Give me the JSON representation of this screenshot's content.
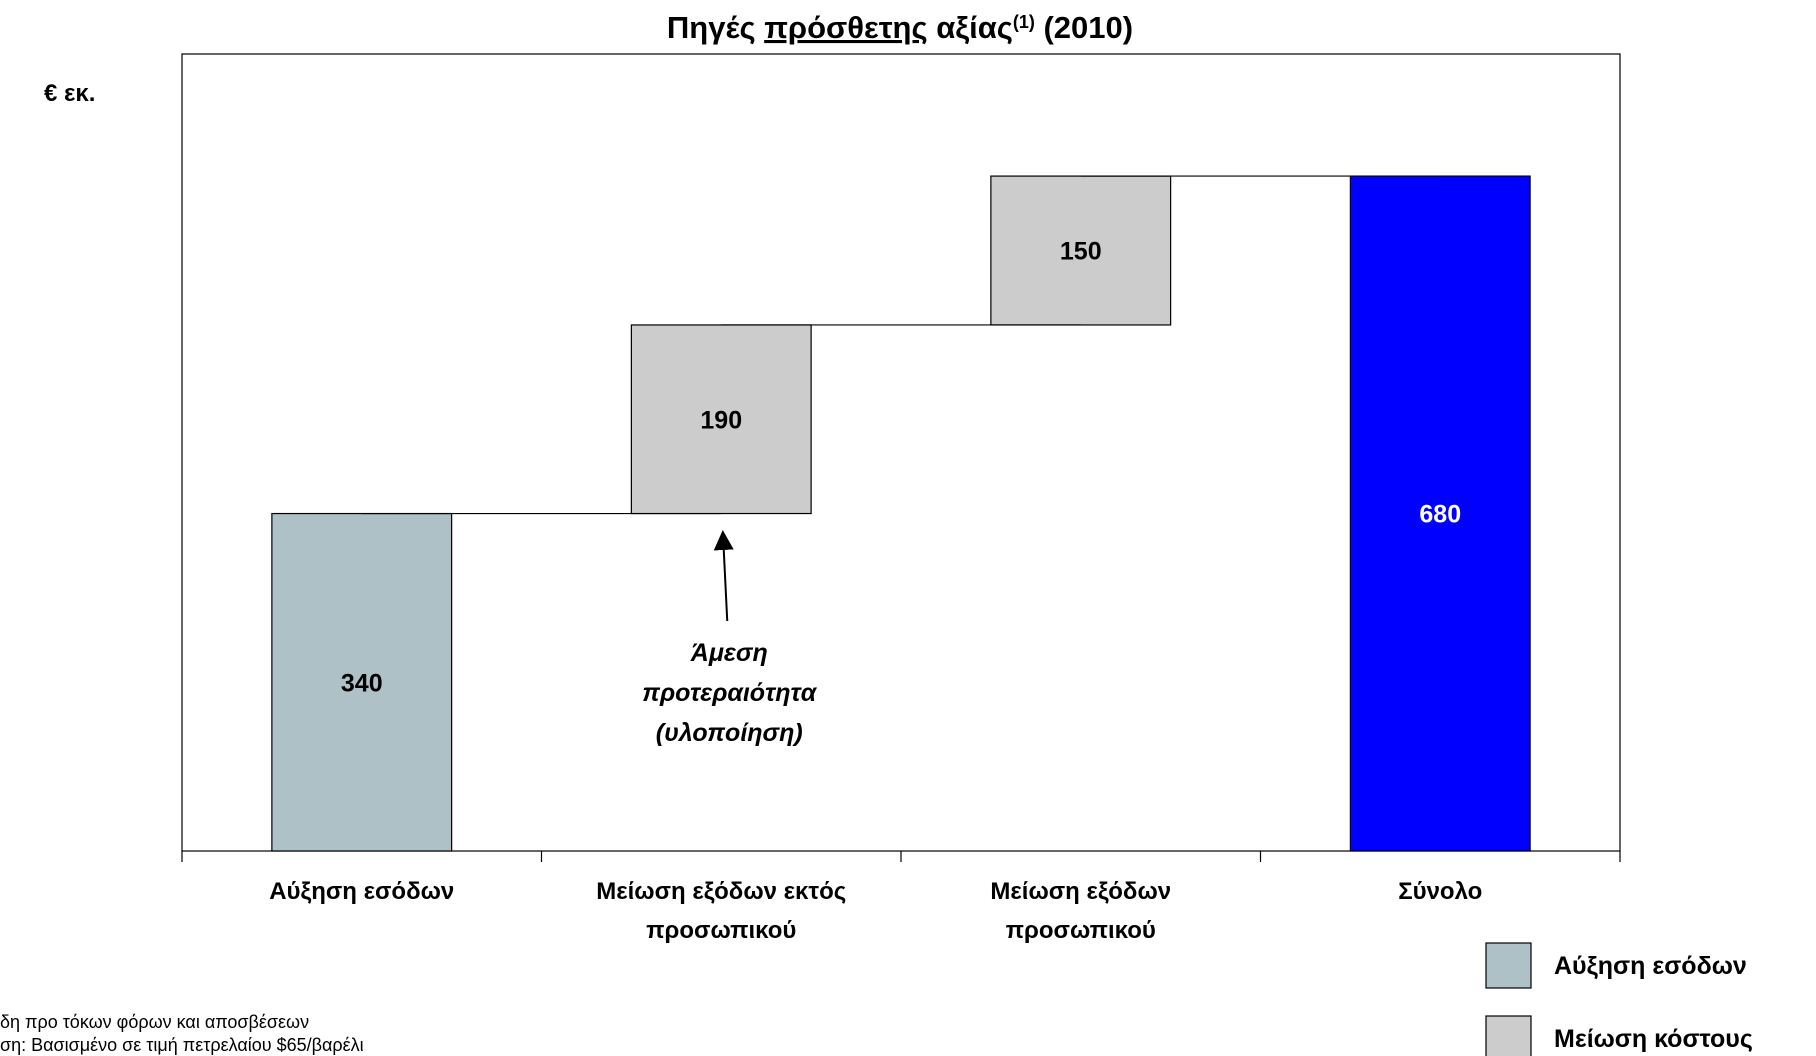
{
  "chart_data": {
    "type": "waterfall",
    "title": [
      "Πηγές ",
      "πρόσθετης",
      " αξίας",
      "(1)",
      "  (2010)"
    ],
    "unit_label": "€ εκ.",
    "categories": [
      [
        "Αύξηση εσόδων"
      ],
      [
        "Μείωση εξόδων εκτός",
        "προσωπικού"
      ],
      [
        "Μείωση εξόδων",
        "προσωπικού"
      ],
      [
        "Σύνολο"
      ]
    ],
    "values": [
      340,
      190,
      150,
      680
    ],
    "measures": [
      "relative",
      "relative",
      "relative",
      "total"
    ],
    "colors": [
      "#aec1c7",
      "#cccccc",
      "#cccccc",
      "#0000ff"
    ],
    "ylim": [
      0,
      803
    ],
    "annotation": {
      "lines": [
        "Άμεση",
        "προτεραιότητα",
        "(υλοποίηση)"
      ],
      "category": 1
    },
    "legend": [
      {
        "name": "Αύξηση εσόδων",
        "color": "#aec1c7"
      },
      {
        "name": "Μείωση κόστους",
        "color": "#cccccc"
      }
    ],
    "footnotes": [
      "δη προ τόκων φόρων και αποσβέσεων",
      "ση: Βασισμένο σε τιμή πετρελαίου $65/βαρέλι"
    ]
  }
}
